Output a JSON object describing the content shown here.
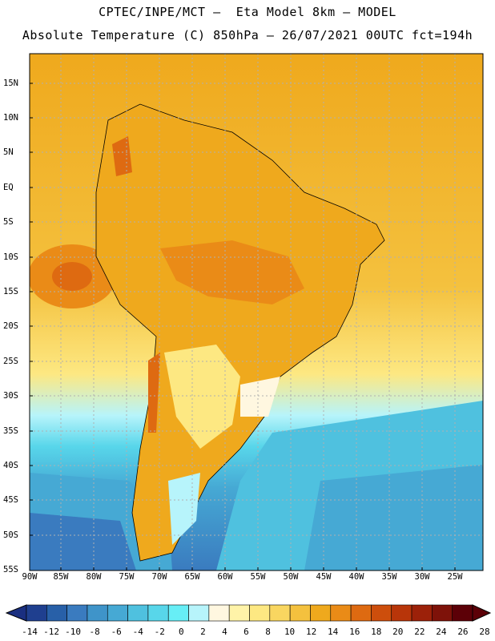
{
  "header": {
    "title_line1": "CPTEC/INPE/MCT –  Eta Model 8km – MODEL",
    "title_line2": "Absolute Temperature (C) 850hPa – 26/07/2021 00UTC fct=194h"
  },
  "map": {
    "lat_ticks": [
      "15N",
      "10N",
      "5N",
      "EQ",
      "5S",
      "10S",
      "15S",
      "20S",
      "25S",
      "30S",
      "35S",
      "40S",
      "45S",
      "50S",
      "55S"
    ],
    "lon_ticks": [
      "90W",
      "85W",
      "80W",
      "75W",
      "70W",
      "65W",
      "60W",
      "55W",
      "50W",
      "45W",
      "40W",
      "35W",
      "30W",
      "25W"
    ],
    "grid": "dotted"
  },
  "colorbar": {
    "labels": [
      "-14",
      "-12",
      "-10",
      "-8",
      "-6",
      "-4",
      "-2",
      "0",
      "2",
      "4",
      "6",
      "8",
      "10",
      "12",
      "14",
      "16",
      "18",
      "20",
      "22",
      "24",
      "26",
      "28"
    ],
    "colors": [
      "#1f3f8f",
      "#2860a8",
      "#3a7bbf",
      "#3f94c9",
      "#46a9d4",
      "#4fc1df",
      "#58d6ea",
      "#67eef6",
      "#b7f4fb",
      "#fff7e0",
      "#fff3a8",
      "#fde882",
      "#f9d660",
      "#f4c13e",
      "#efa91d",
      "#ea8b17",
      "#de6a11",
      "#cd4e0c",
      "#b83509",
      "#9c2109",
      "#7e1209",
      "#5c0007"
    ],
    "left_arrow_color": "#1a2f80",
    "right_arrow_color": "#5c0007"
  }
}
